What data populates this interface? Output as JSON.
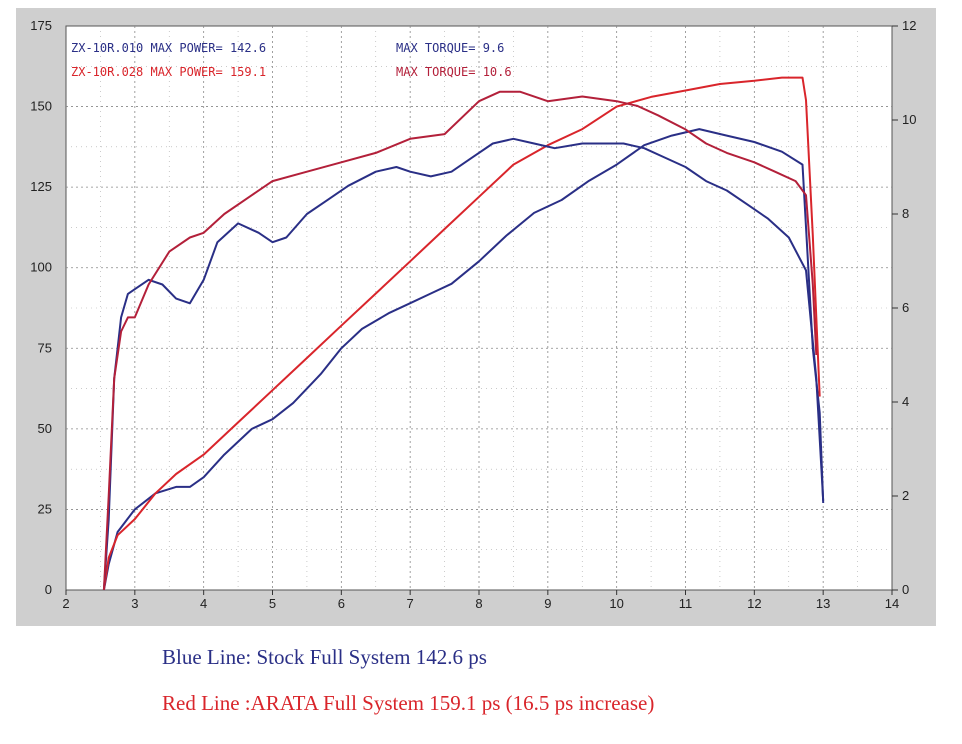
{
  "chart_data": {
    "type": "line",
    "title": "",
    "xlabel": "",
    "ylabel_left": "",
    "ylabel_right": "",
    "xlim": [
      2,
      14
    ],
    "xticks": [
      2,
      3,
      4,
      5,
      6,
      7,
      8,
      9,
      10,
      11,
      12,
      13,
      14
    ],
    "ylim_left": [
      0,
      175
    ],
    "yticks_left": [
      0,
      25,
      50,
      75,
      100,
      125,
      150,
      175
    ],
    "ylim_right": [
      0,
      12
    ],
    "yticks_right": [
      0,
      2,
      4,
      6,
      8,
      10,
      12
    ],
    "grid": true,
    "annotations": [
      {
        "id": "stock_power",
        "text": "ZX-10R.010  MAX POWER= 142.6",
        "color": "#2a2f86"
      },
      {
        "id": "arata_power",
        "text": "ZX-10R.028  MAX POWER= 159.1",
        "color": "#d9252b"
      },
      {
        "id": "stock_torque",
        "text": "MAX TORQUE= 9.6",
        "color": "#2a2f86"
      },
      {
        "id": "arata_torque",
        "text": "MAX TORQUE= 10.6",
        "color": "#b3203a"
      }
    ],
    "series": [
      {
        "id": "stock_power",
        "axis": "left",
        "color": "#2a2f86",
        "x": [
          2.55,
          2.62,
          2.75,
          3.0,
          3.3,
          3.6,
          3.8,
          4.0,
          4.3,
          4.7,
          5.0,
          5.3,
          5.7,
          6.0,
          6.3,
          6.7,
          7.0,
          7.3,
          7.6,
          8.0,
          8.4,
          8.8,
          9.2,
          9.6,
          10.0,
          10.4,
          10.8,
          11.2,
          11.6,
          12.0,
          12.4,
          12.7,
          12.85,
          12.95,
          13.0
        ],
        "y": [
          0,
          8,
          18,
          25,
          30,
          32,
          32,
          35,
          42,
          50,
          53,
          58,
          67,
          75,
          81,
          86,
          89,
          92,
          95,
          102,
          110,
          117,
          121,
          127,
          132,
          138,
          141,
          143,
          141,
          139,
          136,
          132,
          75,
          55,
          27
        ]
      },
      {
        "id": "arata_power",
        "axis": "left",
        "color": "#d9252b",
        "x": [
          2.55,
          2.62,
          2.75,
          3.0,
          3.3,
          3.6,
          4.0,
          4.5,
          5.0,
          5.5,
          6.0,
          6.5,
          7.0,
          7.5,
          8.0,
          8.5,
          9.0,
          9.5,
          10.0,
          10.5,
          11.0,
          11.5,
          12.0,
          12.4,
          12.7,
          12.75,
          12.85,
          12.95
        ],
        "y": [
          0,
          10,
          17,
          22,
          30,
          36,
          42,
          52,
          62,
          72,
          82,
          92,
          102,
          112,
          122,
          132,
          138,
          143,
          150,
          153,
          155,
          157,
          158,
          159,
          159,
          152,
          110,
          60
        ]
      },
      {
        "id": "stock_torque",
        "axis": "right",
        "color": "#2a2f86",
        "x": [
          2.55,
          2.62,
          2.7,
          2.8,
          2.9,
          3.0,
          3.2,
          3.4,
          3.6,
          3.8,
          4.0,
          4.2,
          4.5,
          4.8,
          5.0,
          5.2,
          5.5,
          5.8,
          6.1,
          6.5,
          6.8,
          7.0,
          7.3,
          7.6,
          7.9,
          8.2,
          8.5,
          8.8,
          9.1,
          9.5,
          9.8,
          10.1,
          10.4,
          10.7,
          11.0,
          11.3,
          11.6,
          11.9,
          12.2,
          12.5,
          12.75,
          12.9,
          13.0
        ],
        "y": [
          0,
          1.5,
          4.5,
          5.8,
          6.3,
          6.4,
          6.6,
          6.5,
          6.2,
          6.1,
          6.6,
          7.4,
          7.8,
          7.6,
          7.4,
          7.5,
          8.0,
          8.3,
          8.6,
          8.9,
          9.0,
          8.9,
          8.8,
          8.9,
          9.2,
          9.5,
          9.6,
          9.5,
          9.4,
          9.5,
          9.5,
          9.5,
          9.4,
          9.2,
          9.0,
          8.7,
          8.5,
          8.2,
          7.9,
          7.5,
          6.8,
          4.5,
          1.9
        ]
      },
      {
        "id": "arata_torque",
        "axis": "right",
        "color": "#b3203a",
        "x": [
          2.55,
          2.62,
          2.7,
          2.8,
          2.9,
          3.0,
          3.2,
          3.5,
          3.8,
          4.0,
          4.3,
          4.7,
          5.0,
          5.5,
          6.0,
          6.5,
          7.0,
          7.5,
          8.0,
          8.3,
          8.6,
          9.0,
          9.5,
          10.0,
          10.3,
          10.6,
          11.0,
          11.3,
          11.6,
          12.0,
          12.3,
          12.6,
          12.75,
          12.85,
          12.9
        ],
        "y": [
          0,
          2.0,
          4.5,
          5.5,
          5.8,
          5.8,
          6.5,
          7.2,
          7.5,
          7.6,
          8.0,
          8.4,
          8.7,
          8.9,
          9.1,
          9.3,
          9.6,
          9.7,
          10.4,
          10.6,
          10.6,
          10.4,
          10.5,
          10.4,
          10.3,
          10.1,
          9.8,
          9.5,
          9.3,
          9.1,
          8.9,
          8.7,
          8.4,
          6.5,
          5.0
        ]
      }
    ]
  },
  "captions": {
    "stock": "Blue Line: Stock Full System 142.6 ps",
    "arata": "Red Line :ARATA Full System 159.1 ps (16.5 ps increase)"
  }
}
